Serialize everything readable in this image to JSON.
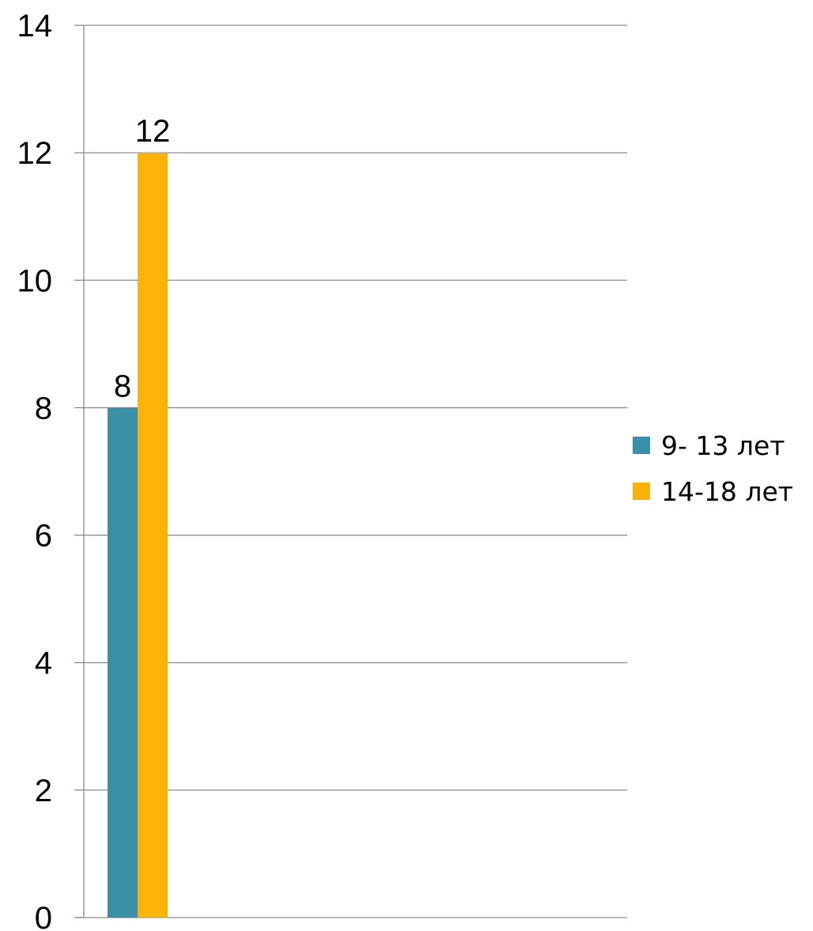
{
  "chart_data": {
    "type": "bar",
    "categories": [
      ""
    ],
    "series": [
      {
        "name": "9- 13 лет",
        "values": [
          8
        ],
        "color": "#3a91a7"
      },
      {
        "name": "14-18 лет",
        "values": [
          12
        ],
        "color": "#fbb30a"
      }
    ],
    "ylim": [
      0,
      14
    ],
    "yticks": [
      "0",
      "2",
      "4",
      "6",
      "8",
      "10",
      "12",
      "14"
    ],
    "data_labels": [
      "8",
      "12"
    ],
    "title": "",
    "xlabel": "",
    "ylabel": "",
    "grid": true,
    "legend_position": "right"
  }
}
